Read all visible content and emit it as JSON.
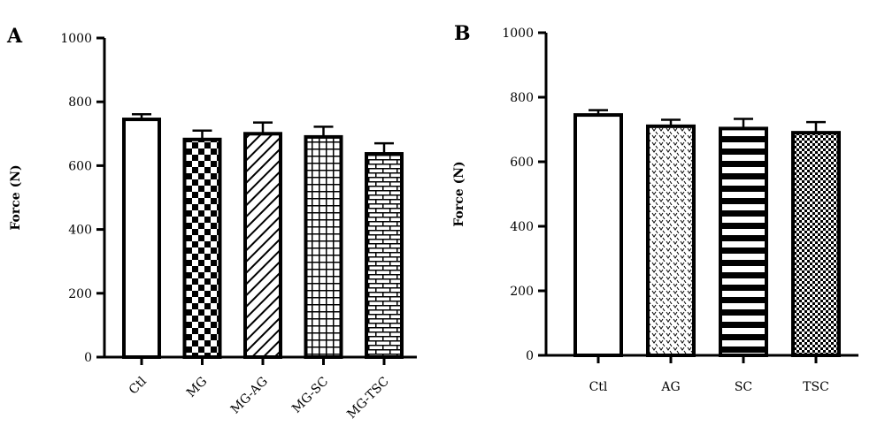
{
  "chart_data": [
    {
      "panel": "A",
      "type": "bar",
      "ylabel": "Force (N)",
      "xlabel": "",
      "ylim": [
        0,
        1000
      ],
      "yticks": [
        0,
        200,
        400,
        600,
        800,
        1000
      ],
      "grid": false,
      "categories": [
        "Ctl",
        "MG",
        "MG-AG",
        "MG-SC",
        "MG-TSC"
      ],
      "values": [
        745,
        682,
        700,
        690,
        637
      ],
      "errors": [
        16,
        28,
        35,
        32,
        33
      ],
      "patterns": [
        "white",
        "checker",
        "diagonal",
        "grid",
        "brick"
      ],
      "rotated_tick_labels": true
    },
    {
      "panel": "B",
      "type": "bar",
      "ylabel": "Force (N)",
      "xlabel": "",
      "ylim": [
        0,
        1000
      ],
      "yticks": [
        0,
        200,
        400,
        600,
        800,
        1000
      ],
      "grid": false,
      "categories": [
        "Ctl",
        "AG",
        "SC",
        "TSC"
      ],
      "values": [
        745,
        710,
        703,
        690
      ],
      "errors": [
        15,
        20,
        30,
        33
      ],
      "patterns": [
        "white",
        "dots",
        "hstripes",
        "finecheck"
      ],
      "rotated_tick_labels": false
    }
  ]
}
